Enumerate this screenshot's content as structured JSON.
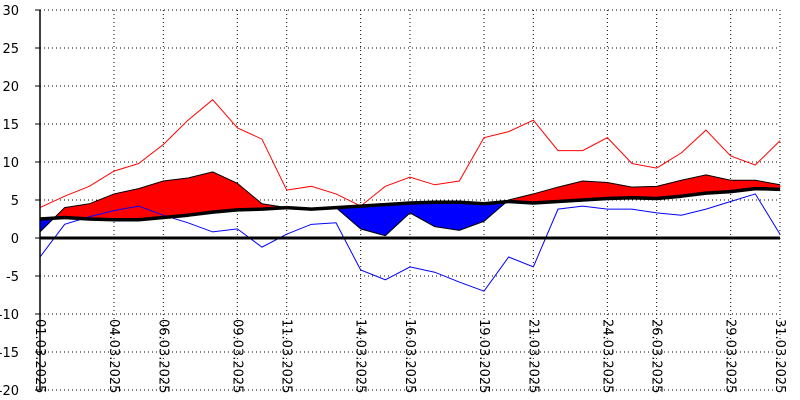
{
  "chart_data": {
    "type": "line",
    "title": "",
    "xlabel": "",
    "ylabel": "",
    "ylim": [
      -20,
      30
    ],
    "yticks": [
      30,
      25,
      20,
      15,
      10,
      5,
      0,
      -5,
      -10,
      -15,
      -20
    ],
    "x_tick_labels": [
      "01.03.2025",
      "04.03.2025",
      "06.03.2025",
      "09.03.2025",
      "11.03.2025",
      "14.03.2025",
      "16.03.2025",
      "19.03.2025",
      "21.03.2025",
      "24.03.2025",
      "26.03.2025",
      "29.03.2025",
      "31.03.2025"
    ],
    "x_tick_days": [
      1,
      4,
      6,
      9,
      11,
      14,
      16,
      19,
      21,
      24,
      26,
      29,
      31
    ],
    "grid": true,
    "days": [
      1,
      2,
      3,
      4,
      5,
      6,
      7,
      8,
      9,
      10,
      11,
      12,
      13,
      14,
      15,
      16,
      17,
      18,
      19,
      20,
      21,
      22,
      23,
      24,
      25,
      26,
      27,
      28,
      29,
      30,
      31
    ],
    "series": [
      {
        "role": "max",
        "color": "#ff0000",
        "values": [
          4.0,
          5.5,
          6.8,
          8.8,
          9.8,
          12.3,
          15.5,
          18.2,
          14.5,
          13.0,
          6.3,
          6.8,
          5.8,
          4.2,
          6.8,
          8.0,
          7.0,
          7.5,
          13.2,
          14.0,
          15.5,
          11.5,
          11.5,
          13.2,
          9.8,
          9.2,
          11.2,
          14.2,
          10.8,
          9.6,
          12.8
        ]
      },
      {
        "role": "mean",
        "color": "#ff0000",
        "values": [
          0.8,
          4.0,
          4.5,
          5.8,
          6.5,
          7.5,
          7.9,
          8.7,
          7.2,
          4.5,
          4.0,
          3.8,
          4.0,
          1.2,
          0.3,
          3.3,
          1.5,
          1.0,
          2.2,
          5.0,
          5.8,
          6.7,
          7.5,
          7.3,
          6.7,
          6.8,
          7.6,
          8.3,
          7.6,
          7.6,
          7.0
        ]
      },
      {
        "role": "norm",
        "color": "#000000",
        "values": [
          2.5,
          2.7,
          2.5,
          2.4,
          2.4,
          2.7,
          3.0,
          3.4,
          3.7,
          3.8,
          4.0,
          3.8,
          4.0,
          4.2,
          4.4,
          4.6,
          4.7,
          4.7,
          4.5,
          4.8,
          4.6,
          4.8,
          5.0,
          5.2,
          5.3,
          5.2,
          5.5,
          5.9,
          6.1,
          6.5,
          6.4
        ]
      },
      {
        "role": "min",
        "color": "#0000ff",
        "values": [
          -2.5,
          1.8,
          2.8,
          3.6,
          4.2,
          3.0,
          2.0,
          0.8,
          1.2,
          -1.2,
          0.5,
          1.8,
          2.0,
          -4.2,
          -5.5,
          -3.8,
          -4.5,
          -5.8,
          -7.0,
          -2.5,
          -3.8,
          3.8,
          4.2,
          3.8,
          3.8,
          3.3,
          3.0,
          3.8,
          4.8,
          5.8,
          0.5
        ]
      }
    ]
  }
}
